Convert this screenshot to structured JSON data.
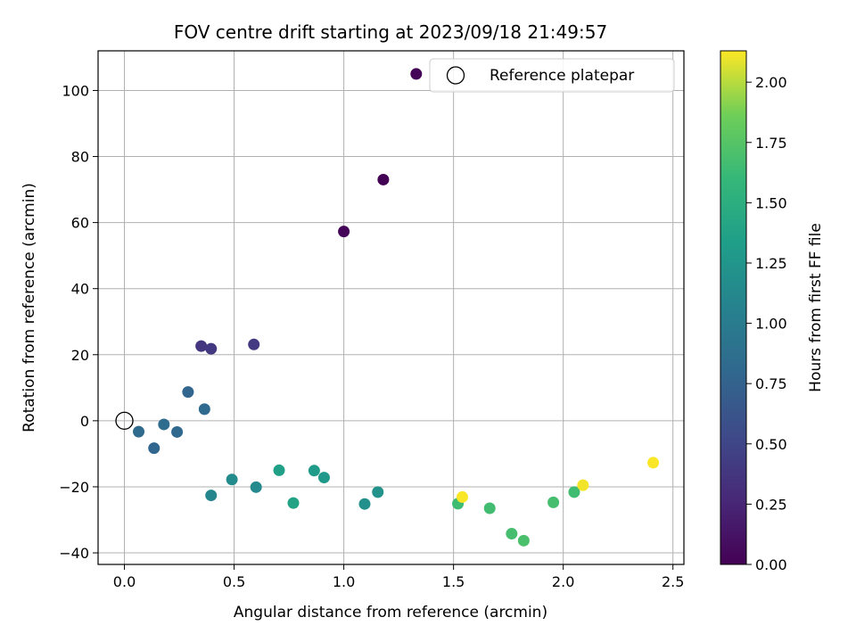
{
  "chart_data": {
    "type": "scatter",
    "title": "FOV centre drift starting at 2023/09/18 21:49:57",
    "xlabel": "Angular distance from reference (arcmin)",
    "ylabel": "Rotation from reference (arcmin)",
    "xlim": [
      -0.12,
      2.55
    ],
    "ylim": [
      -43.5,
      112
    ],
    "xticks": [
      0.0,
      0.5,
      1.0,
      1.5,
      2.0,
      2.5
    ],
    "xtick_labels": [
      "0.0",
      "0.5",
      "1.0",
      "1.5",
      "2.0",
      "2.5"
    ],
    "yticks": [
      -40,
      -20,
      0,
      20,
      40,
      60,
      80,
      100
    ],
    "ytick_labels": [
      "−40",
      "−20",
      "0",
      "20",
      "40",
      "60",
      "80",
      "100"
    ],
    "grid": true,
    "colormap": "viridis",
    "colorbar": {
      "label": "Hours from first FF file",
      "range": [
        0.0,
        2.13
      ],
      "ticks": [
        0.0,
        0.25,
        0.5,
        0.75,
        1.0,
        1.25,
        1.5,
        1.75,
        2.0
      ],
      "tick_labels": [
        "0.00",
        "0.25",
        "0.50",
        "0.75",
        "1.00",
        "1.25",
        "1.50",
        "1.75",
        "2.00"
      ]
    },
    "reference": {
      "name": "Reference platepar",
      "x": 0.0,
      "y": 0.0
    },
    "legend_placement": "top-right",
    "points": [
      {
        "x": 1.33,
        "y": 105.0,
        "c": 0.02
      },
      {
        "x": 1.18,
        "y": 73.0,
        "c": 0.01
      },
      {
        "x": 1.0,
        "y": 57.3,
        "c": 0.03
      },
      {
        "x": 0.35,
        "y": 22.6,
        "c": 0.38
      },
      {
        "x": 0.395,
        "y": 21.8,
        "c": 0.4
      },
      {
        "x": 0.59,
        "y": 23.1,
        "c": 0.41
      },
      {
        "x": 0.29,
        "y": 8.7,
        "c": 0.78
      },
      {
        "x": 0.365,
        "y": 3.5,
        "c": 0.82
      },
      {
        "x": 0.065,
        "y": -3.3,
        "c": 0.83
      },
      {
        "x": 0.135,
        "y": -8.3,
        "c": 0.79
      },
      {
        "x": 0.18,
        "y": -1.1,
        "c": 0.85
      },
      {
        "x": 0.24,
        "y": -3.4,
        "c": 0.8
      },
      {
        "x": 0.395,
        "y": -22.6,
        "c": 1.1
      },
      {
        "x": 0.49,
        "y": -17.8,
        "c": 1.15
      },
      {
        "x": 0.6,
        "y": -20.1,
        "c": 1.14
      },
      {
        "x": 0.705,
        "y": -15.0,
        "c": 1.35
      },
      {
        "x": 0.77,
        "y": -24.9,
        "c": 1.38
      },
      {
        "x": 0.865,
        "y": -15.1,
        "c": 1.3
      },
      {
        "x": 0.91,
        "y": -17.2,
        "c": 1.28
      },
      {
        "x": 1.095,
        "y": -25.2,
        "c": 1.2
      },
      {
        "x": 1.155,
        "y": -21.6,
        "c": 1.22
      },
      {
        "x": 1.52,
        "y": -25.1,
        "c": 1.65
      },
      {
        "x": 1.54,
        "y": -23.1,
        "c": 2.12
      },
      {
        "x": 1.665,
        "y": -26.5,
        "c": 1.66
      },
      {
        "x": 1.765,
        "y": -34.2,
        "c": 1.68
      },
      {
        "x": 1.82,
        "y": -36.3,
        "c": 1.7
      },
      {
        "x": 1.955,
        "y": -24.7,
        "c": 1.68
      },
      {
        "x": 2.05,
        "y": -21.6,
        "c": 1.65
      },
      {
        "x": 2.09,
        "y": -19.5,
        "c": 2.11
      },
      {
        "x": 2.41,
        "y": -12.7,
        "c": 2.12
      }
    ]
  }
}
